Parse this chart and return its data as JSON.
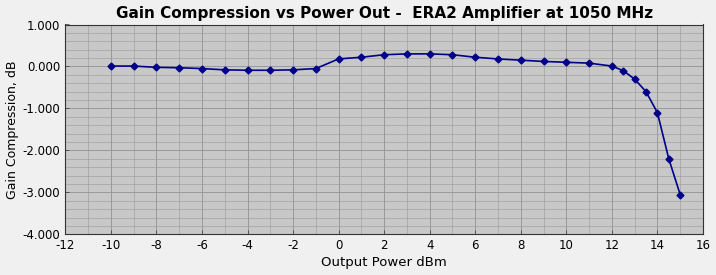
{
  "title": "Gain Compression vs Power Out -  ERA2 Amplifier at 1050 MHz",
  "xlabel": "Output Power dBm",
  "ylabel": "Gain Compression, dB",
  "xlim": [
    -12,
    16
  ],
  "ylim": [
    -4.0,
    1.0
  ],
  "xticks": [
    -12,
    -10,
    -8,
    -6,
    -4,
    -2,
    0,
    2,
    4,
    6,
    8,
    10,
    12,
    14,
    16
  ],
  "yticks": [
    -4.0,
    -3.0,
    -2.0,
    -1.0,
    0.0,
    1.0
  ],
  "ytick_labels": [
    "-4.000",
    "-3.000",
    "-2.000",
    "-1.000",
    "0.000",
    "1.000"
  ],
  "line_color": "#00008b",
  "marker": "D",
  "markersize": 3.5,
  "background_color": "#c8c8c8",
  "fig_background_color": "#f0f0f0",
  "grid_color": "#999999",
  "x_data": [
    -10,
    -9,
    -8,
    -7,
    -6,
    -5,
    -4,
    -3,
    -2,
    -1,
    0,
    1,
    2,
    3,
    4,
    5,
    6,
    7,
    8,
    9,
    10,
    11,
    12,
    12.5,
    13,
    13.5,
    14,
    14.5,
    15
  ],
  "y_data": [
    0.01,
    0.01,
    -0.02,
    -0.03,
    -0.05,
    -0.08,
    -0.09,
    -0.09,
    -0.08,
    -0.05,
    0.18,
    0.22,
    0.28,
    0.3,
    0.3,
    0.28,
    0.22,
    0.18,
    0.15,
    0.12,
    0.1,
    0.08,
    0.01,
    -0.1,
    -0.3,
    -0.6,
    -1.1,
    -2.2,
    -3.05
  ]
}
